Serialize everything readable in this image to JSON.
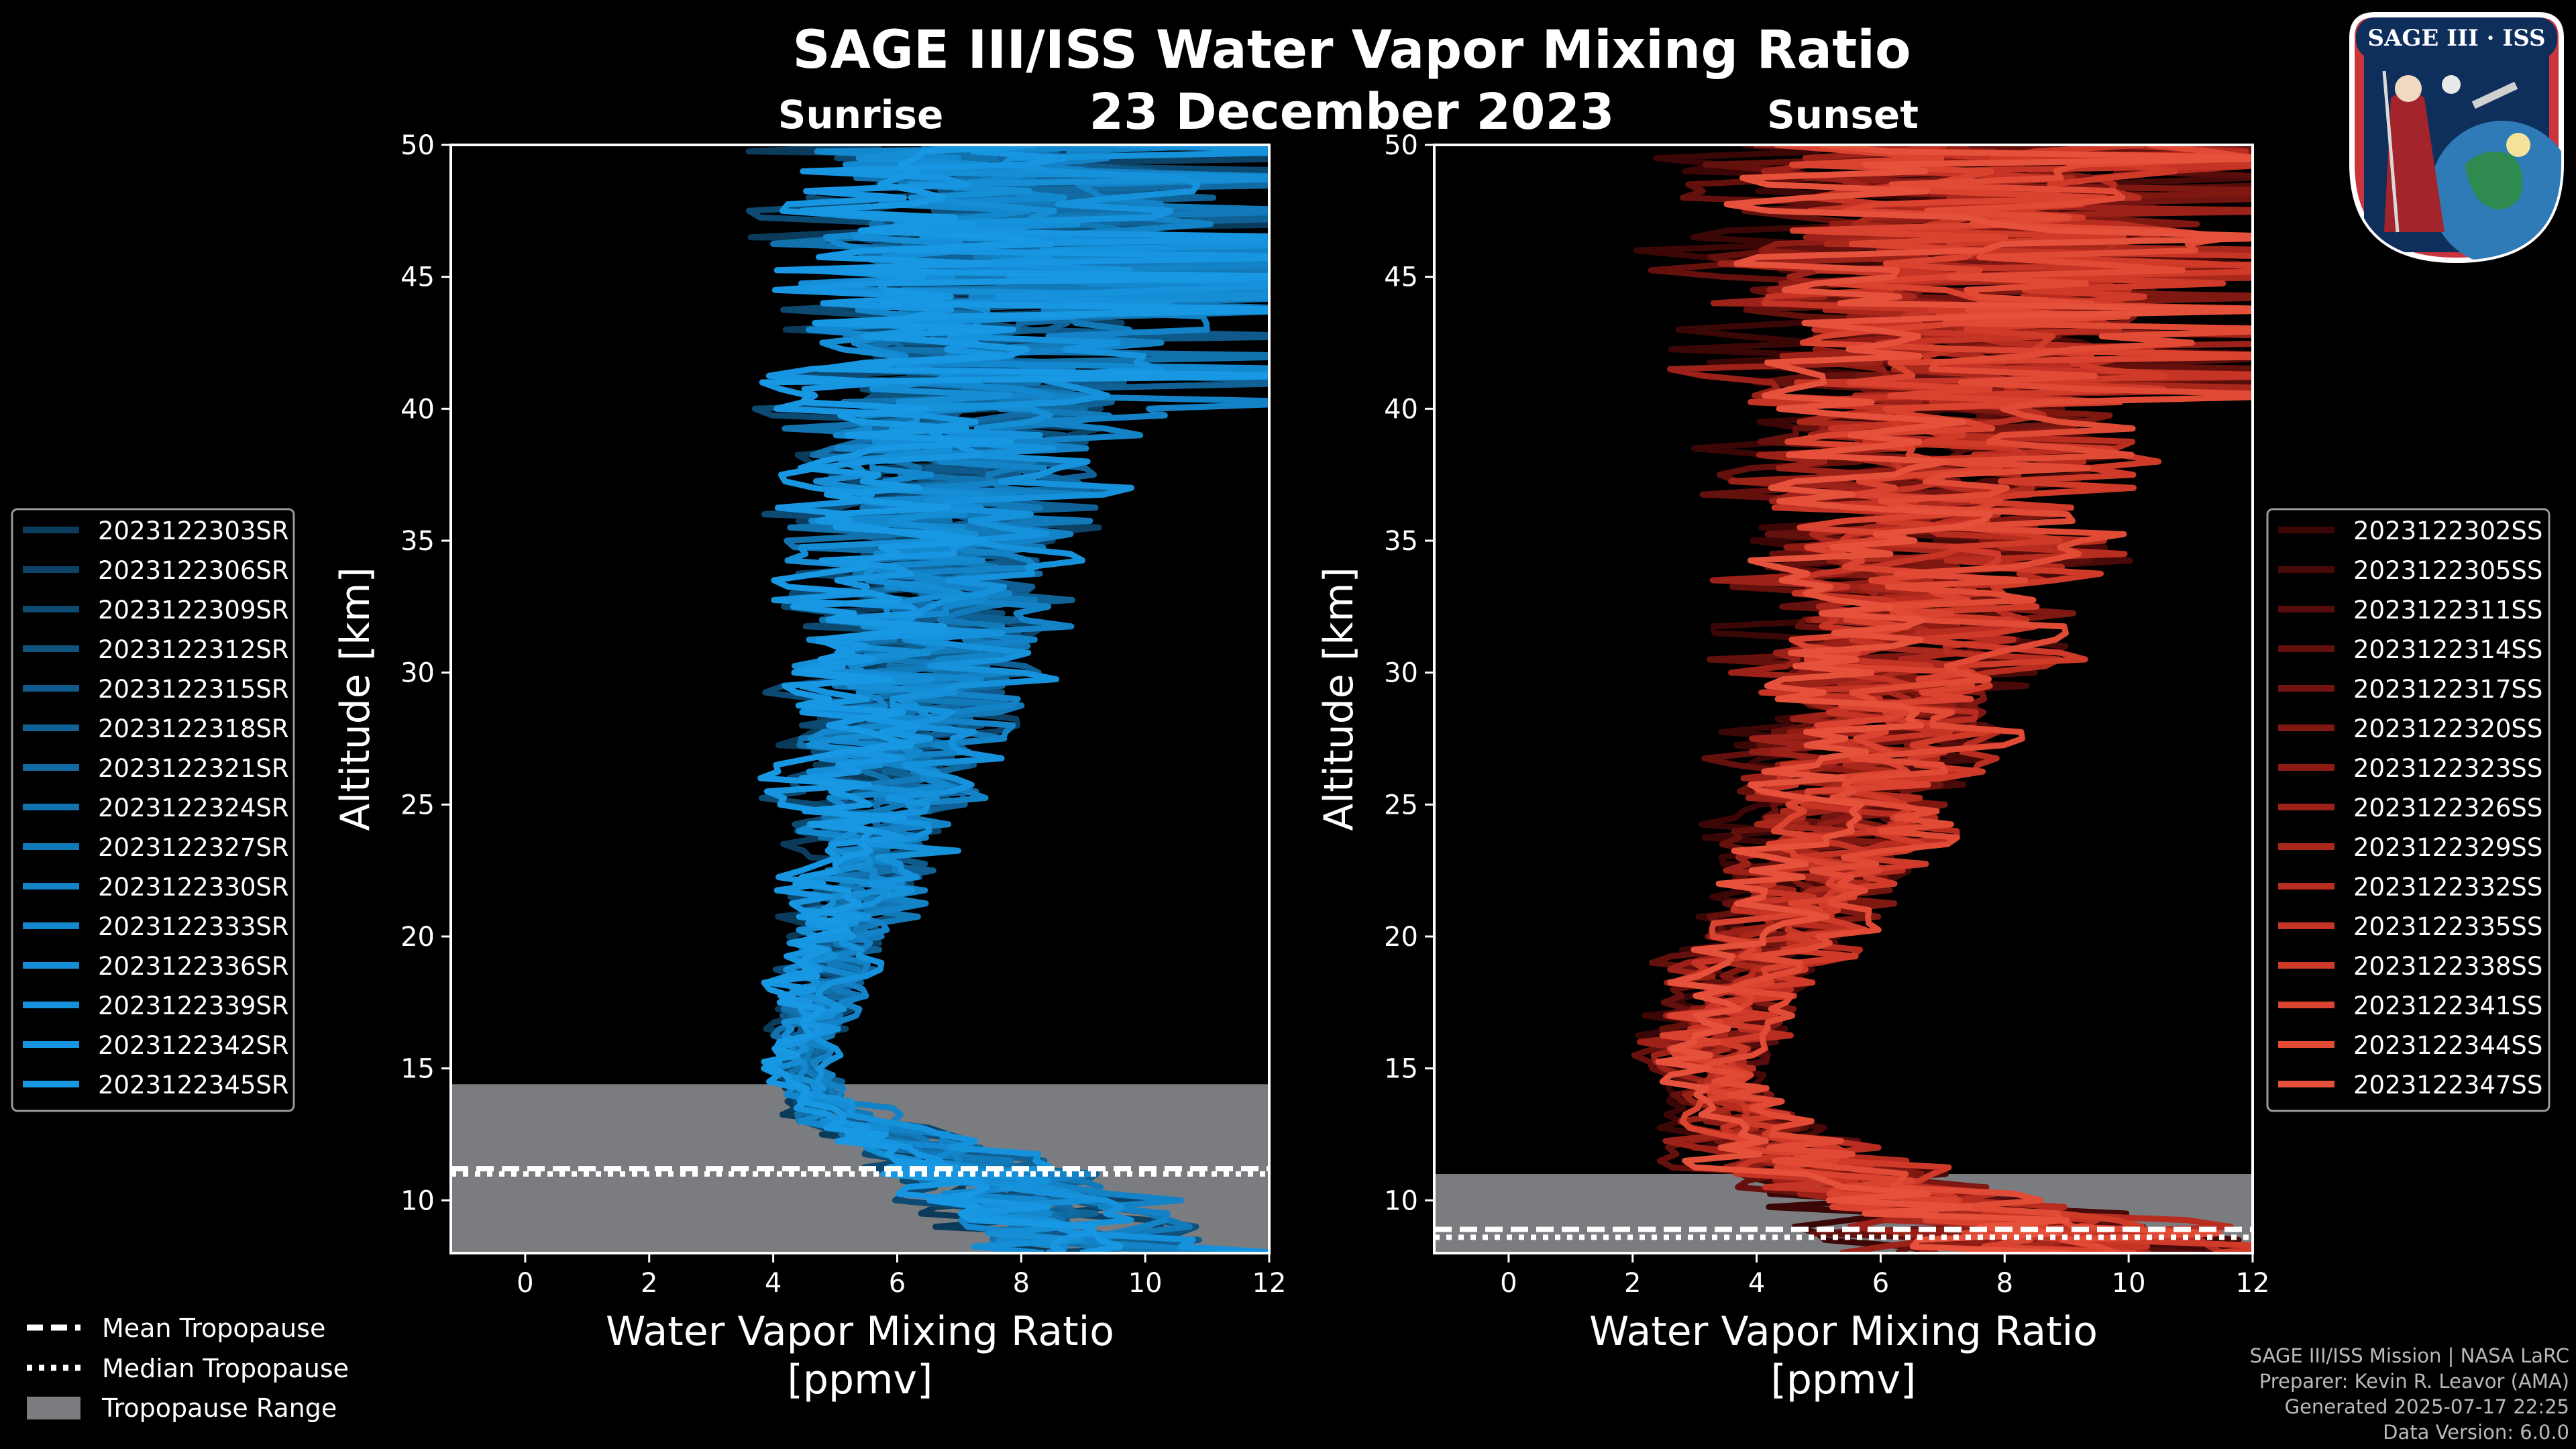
{
  "figure": {
    "title": "SAGE III/ISS Water Vapor Mixing Ratio",
    "date": "23 December 2023",
    "footer": [
      "SAGE III/ISS Mission | NASA LaRC",
      "Preparer: Kevin R. Leavor (AMA)",
      "Generated 2025-07-17 22:25",
      "Data Version: 6.0.0"
    ],
    "logo_text": "SAGE III · ISS",
    "tropopause_legend": [
      "Mean Tropopause",
      "Median Tropopause",
      "Tropopause Range"
    ]
  },
  "chart_data": [
    {
      "type": "line",
      "panel": "sunrise",
      "subtitle": "Sunrise",
      "xlabel": "Water Vapor Mixing Ratio\n[ppmv]",
      "ylabel": "Altitude [km]",
      "xlim": [
        -1.2,
        12
      ],
      "ylim": [
        8,
        50
      ],
      "xticks": [
        0,
        2,
        4,
        6,
        8,
        10,
        12
      ],
      "yticks": [
        10,
        15,
        20,
        25,
        30,
        35,
        40,
        45,
        50
      ],
      "legend_location": "left",
      "tropopause": {
        "mean": 11.2,
        "median": 11.0,
        "range": [
          8.0,
          14.4
        ]
      },
      "colors": [
        "#0b3b5a",
        "#0c4266",
        "#0d4a72",
        "#0e527e",
        "#0f5a8a",
        "#106296",
        "#116aa2",
        "#1272ae",
        "#137aba",
        "#1482c6",
        "#1488cf",
        "#158ed6",
        "#1692dc",
        "#1795e0",
        "#1898e3"
      ],
      "series": [
        {
          "name": "2023122303SR"
        },
        {
          "name": "2023122306SR"
        },
        {
          "name": "2023122309SR"
        },
        {
          "name": "2023122312SR"
        },
        {
          "name": "2023122315SR"
        },
        {
          "name": "2023122318SR"
        },
        {
          "name": "2023122321SR"
        },
        {
          "name": "2023122324SR"
        },
        {
          "name": "2023122327SR"
        },
        {
          "name": "2023122330SR"
        },
        {
          "name": "2023122333SR"
        },
        {
          "name": "2023122336SR"
        },
        {
          "name": "2023122339SR"
        },
        {
          "name": "2023122342SR"
        },
        {
          "name": "2023122345SR"
        }
      ],
      "approx_profile": {
        "altitude_km": [
          8,
          10,
          12,
          13,
          14,
          15,
          16,
          18,
          20,
          22,
          25,
          28,
          30,
          33,
          35,
          38,
          40,
          43,
          45,
          48,
          50
        ],
        "mean_ppmv": [
          9.5,
          8.0,
          6.5,
          5.2,
          4.6,
          4.4,
          4.5,
          4.7,
          5.0,
          5.3,
          5.6,
          5.9,
          6.1,
          6.3,
          6.5,
          6.7,
          6.8,
          7.0,
          7.1,
          7.2,
          7.3
        ],
        "spread_ppmv": [
          2.5,
          2.0,
          1.5,
          1.0,
          0.6,
          0.5,
          0.6,
          0.8,
          1.0,
          1.2,
          1.6,
          1.9,
          2.1,
          2.3,
          2.5,
          2.7,
          2.9,
          3.1,
          3.3,
          3.5,
          3.6
        ]
      }
    },
    {
      "type": "line",
      "panel": "sunset",
      "subtitle": "Sunset",
      "xlabel": "Water Vapor Mixing Ratio\n[ppmv]",
      "ylabel": "Altitude [km]",
      "xlim": [
        -1.2,
        12
      ],
      "ylim": [
        8,
        50
      ],
      "xticks": [
        0,
        2,
        4,
        6,
        8,
        10,
        12
      ],
      "yticks": [
        10,
        15,
        20,
        25,
        30,
        35,
        40,
        45,
        50
      ],
      "legend_location": "right",
      "tropopause": {
        "mean": 8.9,
        "median": 8.6,
        "range": [
          8.0,
          11.0
        ]
      },
      "colors": [
        "#3a0706",
        "#480a08",
        "#560d0b",
        "#64100d",
        "#72140f",
        "#801812",
        "#8e1c15",
        "#9c2118",
        "#aa271c",
        "#b82d20",
        "#c53424",
        "#d03b29",
        "#da432f",
        "#e14a35",
        "#e6513b"
      ],
      "series": [
        {
          "name": "2023122302SS"
        },
        {
          "name": "2023122305SS"
        },
        {
          "name": "2023122311SS"
        },
        {
          "name": "2023122314SS"
        },
        {
          "name": "2023122317SS"
        },
        {
          "name": "2023122320SS"
        },
        {
          "name": "2023122323SS"
        },
        {
          "name": "2023122326SS"
        },
        {
          "name": "2023122329SS"
        },
        {
          "name": "2023122332SS"
        },
        {
          "name": "2023122335SS"
        },
        {
          "name": "2023122338SS"
        },
        {
          "name": "2023122341SS"
        },
        {
          "name": "2023122344SS"
        },
        {
          "name": "2023122347SS"
        }
      ],
      "approx_profile": {
        "altitude_km": [
          8,
          9,
          10,
          11,
          12,
          13,
          14,
          15,
          16,
          18,
          20,
          22,
          25,
          28,
          30,
          33,
          35,
          38,
          40,
          43,
          45,
          48,
          50
        ],
        "mean_ppmv": [
          9.0,
          8.0,
          6.5,
          5.0,
          4.2,
          3.7,
          3.4,
          3.2,
          3.2,
          3.6,
          4.2,
          4.8,
          5.4,
          5.8,
          6.1,
          6.3,
          6.5,
          6.6,
          6.7,
          6.8,
          6.9,
          7.0,
          7.0
        ],
        "spread_ppmv": [
          3.0,
          3.0,
          2.5,
          2.0,
          1.5,
          1.1,
          0.9,
          0.9,
          1.0,
          1.2,
          1.4,
          1.6,
          1.8,
          2.1,
          2.3,
          2.6,
          2.8,
          3.0,
          3.2,
          3.5,
          3.8,
          4.0,
          4.1
        ]
      }
    }
  ]
}
